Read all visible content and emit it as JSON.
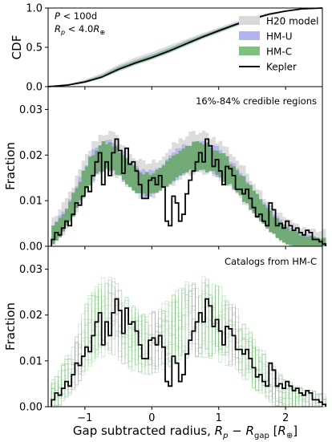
{
  "chart_data": [
    {
      "type": "line",
      "panel": "top",
      "ylabel": "CDF",
      "annotation_lines": [
        "P < 100d",
        "Rp < 4.0R⊕"
      ],
      "xlim": [
        -1.55,
        2.55
      ],
      "ylim": [
        0.0,
        1.0
      ],
      "yticks": [
        0.0,
        0.5,
        1.0
      ],
      "ytick_labels": [
        "0.0",
        "0.5",
        "1.0"
      ],
      "x_grid": [
        -1.55,
        -1.25,
        -1.0,
        -0.75,
        -0.5,
        -0.25,
        0.0,
        0.25,
        0.5,
        0.75,
        1.0,
        1.25,
        1.5,
        1.75,
        2.0,
        2.25,
        2.55
      ],
      "series": [
        {
          "name": "Kepler",
          "color": "#000000",
          "style": "line",
          "y": [
            0.0,
            0.02,
            0.06,
            0.12,
            0.22,
            0.3,
            0.37,
            0.45,
            0.54,
            0.63,
            0.71,
            0.79,
            0.86,
            0.92,
            0.96,
            0.99,
            1.0
          ]
        },
        {
          "name": "H20 model",
          "color": "#d9d9d9",
          "style": "band",
          "lower": [
            0.0,
            0.01,
            0.04,
            0.1,
            0.19,
            0.27,
            0.34,
            0.42,
            0.51,
            0.6,
            0.68,
            0.76,
            0.84,
            0.9,
            0.95,
            0.98,
            1.0
          ],
          "upper": [
            0.0,
            0.04,
            0.09,
            0.17,
            0.28,
            0.37,
            0.44,
            0.52,
            0.6,
            0.68,
            0.75,
            0.83,
            0.89,
            0.94,
            0.97,
            0.99,
            1.0
          ]
        },
        {
          "name": "HM-U",
          "color": "#b3b3f2",
          "style": "band",
          "lower": [
            0.0,
            0.015,
            0.05,
            0.11,
            0.2,
            0.28,
            0.35,
            0.43,
            0.52,
            0.61,
            0.69,
            0.77,
            0.85,
            0.91,
            0.955,
            0.985,
            1.0
          ],
          "upper": [
            0.0,
            0.03,
            0.08,
            0.15,
            0.26,
            0.34,
            0.41,
            0.49,
            0.58,
            0.66,
            0.74,
            0.81,
            0.88,
            0.93,
            0.97,
            0.99,
            1.0
          ]
        },
        {
          "name": "HM-C",
          "color": "#7fbf7f",
          "style": "band",
          "lower": [
            0.0,
            0.015,
            0.05,
            0.11,
            0.2,
            0.28,
            0.35,
            0.43,
            0.52,
            0.61,
            0.69,
            0.77,
            0.85,
            0.91,
            0.955,
            0.985,
            1.0
          ],
          "upper": [
            0.0,
            0.03,
            0.075,
            0.145,
            0.25,
            0.33,
            0.4,
            0.48,
            0.57,
            0.65,
            0.73,
            0.8,
            0.875,
            0.925,
            0.965,
            0.99,
            1.0
          ]
        }
      ],
      "legend": {
        "placement": "right",
        "entries": [
          "H20 model",
          "HM-U",
          "HM-C",
          "Kepler"
        ]
      }
    },
    {
      "type": "histogram",
      "panel": "middle",
      "ylabel": "Fraction",
      "annotation": "16%-84% credible regions",
      "xlim": [
        -1.55,
        2.55
      ],
      "ylim": [
        0.0,
        0.035
      ],
      "yticks": [
        0.0,
        0.01,
        0.02,
        0.03
      ],
      "ytick_labels": [
        "0.00",
        "0.01",
        "0.02",
        "0.03"
      ],
      "bin_start": -1.5,
      "bin_width": 0.05,
      "kepler": [
        0.0015,
        0.003,
        0.0025,
        0.004,
        0.0055,
        0.0045,
        0.007,
        0.0095,
        0.009,
        0.011,
        0.013,
        0.012,
        0.0155,
        0.0185,
        0.0205,
        0.0135,
        0.0185,
        0.0155,
        0.0205,
        0.0235,
        0.021,
        0.016,
        0.0215,
        0.018,
        0.0185,
        0.0165,
        0.0135,
        0.0105,
        0.0105,
        0.0145,
        0.015,
        0.0135,
        0.0155,
        0.013,
        0.0055,
        0.0045,
        0.011,
        0.0095,
        0.0055,
        0.007,
        0.0115,
        0.0145,
        0.0165,
        0.0185,
        0.0205,
        0.0185,
        0.0235,
        0.022,
        0.0175,
        0.019,
        0.0165,
        0.0135,
        0.0175,
        0.017,
        0.0155,
        0.0125,
        0.0125,
        0.0115,
        0.0125,
        0.0105,
        0.0085,
        0.0065,
        0.007,
        0.0055,
        0.0045,
        0.0095,
        0.008,
        0.0045,
        0.005,
        0.004,
        0.0055,
        0.0045,
        0.0035,
        0.004,
        0.003,
        0.0025,
        0.0035,
        0.003,
        0.0015,
        0.0015,
        0.001,
        0.0005
      ],
      "bands": [
        {
          "name": "H20 model",
          "color": "#d9d9d9"
        },
        {
          "name": "HM-U",
          "color": "#b3b3f2"
        },
        {
          "name": "HM-C",
          "color": "#6aa86a"
        }
      ],
      "band_envelope_note": "Shaded bands follow a bimodal envelope with peaks near -0.7 and 0.6 at about 0.018-0.021."
    },
    {
      "type": "histogram",
      "panel": "bottom",
      "ylabel": "Fraction",
      "xlabel": "Gap subtracted radius, Rp − Rgap [R⊕]",
      "annotation": "Catalogs from HM-C",
      "xlim": [
        -1.55,
        2.55
      ],
      "ylim": [
        0.0,
        0.035
      ],
      "yticks": [
        0.0,
        0.01,
        0.02,
        0.03
      ],
      "ytick_labels": [
        "0.00",
        "0.01",
        "0.02",
        "0.03"
      ],
      "xticks": [
        -1,
        0,
        1,
        2
      ],
      "xtick_labels": [
        "−1",
        "0",
        "1",
        "2"
      ],
      "catalog_color": "#7fbf7f",
      "kepler_color": "#000000"
    }
  ]
}
